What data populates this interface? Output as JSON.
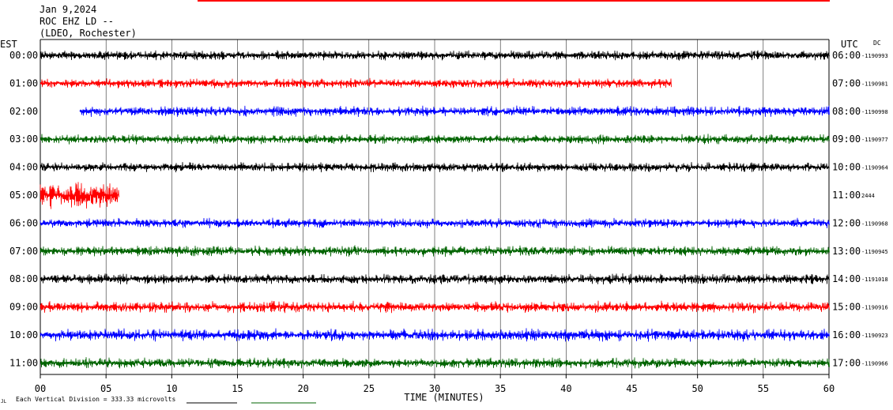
{
  "header": {
    "date": "Jan 9,2024",
    "station": "ROC EHZ LD --",
    "network": "(LDEO, Rochester)"
  },
  "left_axis_label": "EST",
  "right_axis_label": "UTC",
  "dc_label": "DC",
  "footer_note": "Each Vertical Division =  333.33 microvolts",
  "footer_mark": "JL",
  "colors": {
    "black": "#000000",
    "red": "#ff0000",
    "blue": "#0000ff",
    "green": "#006400",
    "top_bar": "#ff0000",
    "grid": "#000000"
  },
  "chart_data": {
    "type": "line",
    "title": "",
    "xlabel": "TIME (MINUTES)",
    "xlim": [
      0,
      60
    ],
    "x_ticks": [
      "00",
      "05",
      "10",
      "15",
      "20",
      "25",
      "30",
      "35",
      "40",
      "45",
      "50",
      "55",
      "60"
    ],
    "rows": [
      {
        "est": "00:00",
        "utc": "06:00",
        "dc": "-1190993",
        "color": "black",
        "start": 0,
        "end": 60,
        "amp": 0.55
      },
      {
        "est": "01:00",
        "utc": "07:00",
        "dc": "-1190981",
        "color": "red",
        "start": 0,
        "end": 48,
        "amp": 0.55
      },
      {
        "est": "02:00",
        "utc": "08:00",
        "dc": "-1190998",
        "color": "blue",
        "start": 3,
        "end": 60,
        "amp": 0.6
      },
      {
        "est": "03:00",
        "utc": "09:00",
        "dc": "-1190977",
        "color": "green",
        "start": 0,
        "end": 60,
        "amp": 0.55
      },
      {
        "est": "04:00",
        "utc": "10:00",
        "dc": "-1190964",
        "color": "black",
        "start": 0,
        "end": 60,
        "amp": 0.55
      },
      {
        "est": "05:00",
        "utc": "11:00",
        "dc": "2444",
        "color": "red",
        "start": 0,
        "end": 6,
        "amp": 1.6
      },
      {
        "est": "06:00",
        "utc": "12:00",
        "dc": "-1190968",
        "color": "blue",
        "start": 0,
        "end": 60,
        "amp": 0.55
      },
      {
        "est": "07:00",
        "utc": "13:00",
        "dc": "-1190945",
        "color": "green",
        "start": 0,
        "end": 60,
        "amp": 0.6
      },
      {
        "est": "08:00",
        "utc": "14:00",
        "dc": "-1191018",
        "color": "black",
        "start": 0,
        "end": 60,
        "amp": 0.6
      },
      {
        "est": "09:00",
        "utc": "15:00",
        "dc": "-1190916",
        "color": "red",
        "start": 0,
        "end": 60,
        "amp": 0.65
      },
      {
        "est": "10:00",
        "utc": "16:00",
        "dc": "-1190923",
        "color": "blue",
        "start": 0,
        "end": 60,
        "amp": 0.7
      },
      {
        "est": "11:00",
        "utc": "17:00",
        "dc": "-1190966",
        "color": "green",
        "start": 0,
        "end": 60,
        "amp": 0.6
      }
    ]
  }
}
